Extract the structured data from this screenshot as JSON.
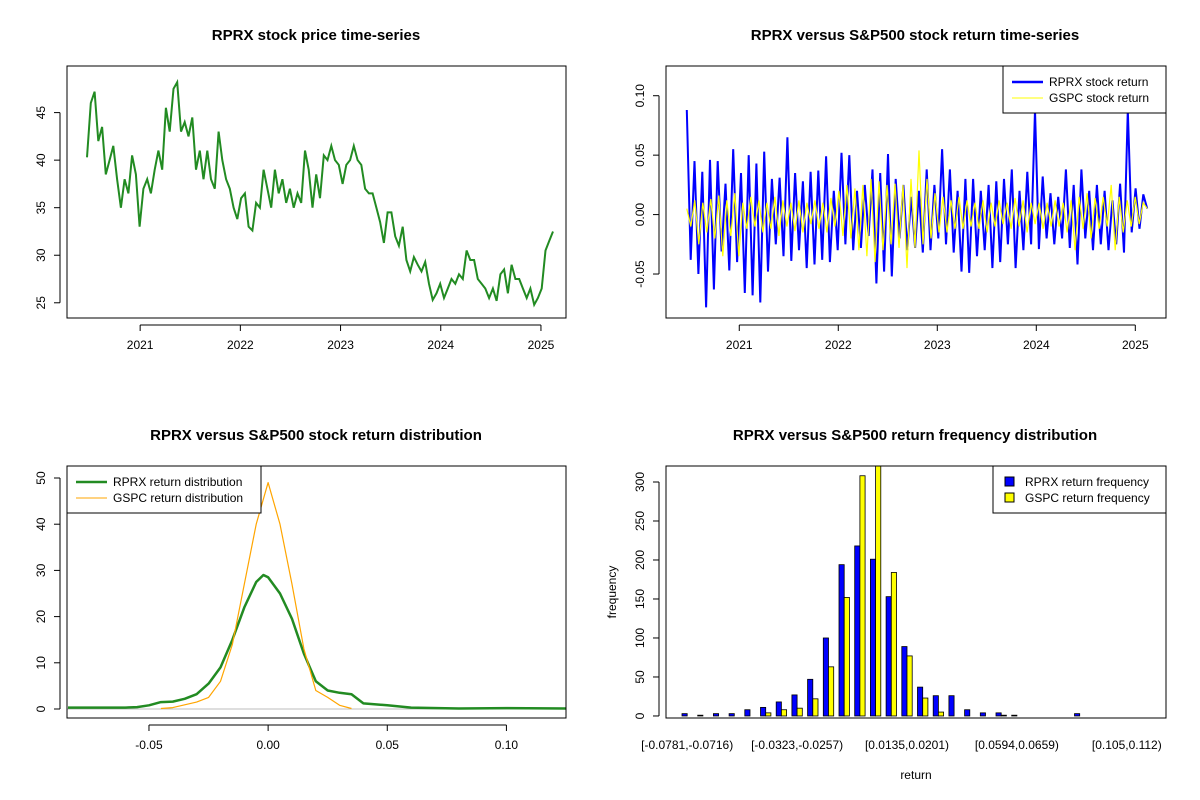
{
  "colors": {
    "rprx_price": "#228b22",
    "rprx_return": "#0000ff",
    "gspc_return": "#ffff00",
    "gspc_density": "#ffa500",
    "zero_line": "#bebebe"
  },
  "chart_data": [
    {
      "id": "price",
      "type": "line",
      "title": "RPRX stock price time-series",
      "xlabel": "",
      "ylabel": "",
      "xlim": [
        2020.27,
        2025.25
      ],
      "ylim": [
        23.4,
        49.9
      ],
      "xticks": [
        {
          "value": 2021,
          "label": "2021"
        },
        {
          "value": 2022,
          "label": "2022"
        },
        {
          "value": 2023,
          "label": "2023"
        },
        {
          "value": 2024,
          "label": "2024"
        },
        {
          "value": 2025,
          "label": "2025"
        }
      ],
      "yticks": [
        {
          "value": 25,
          "label": "25"
        },
        {
          "value": 30,
          "label": "30"
        },
        {
          "value": 35,
          "label": "35"
        },
        {
          "value": 40,
          "label": "40"
        },
        {
          "value": 45,
          "label": "45"
        }
      ],
      "x_range": [
        2020.47,
        2025.12
      ],
      "series": [
        {
          "name": "RPRX",
          "color": "#228b22",
          "values": [
            40.3,
            46,
            47.2,
            42,
            43.5,
            38.5,
            40,
            41.5,
            38,
            35,
            38,
            36.5,
            40.5,
            38.5,
            33,
            37,
            38,
            36.5,
            39,
            41,
            39,
            45.5,
            43,
            47.5,
            48.2,
            43,
            44,
            42.5,
            44.5,
            39,
            41,
            38,
            41,
            38,
            37,
            43,
            40,
            38,
            37,
            35,
            33.8,
            36,
            36.5,
            33,
            32.6,
            35.5,
            35,
            39,
            37,
            35,
            39,
            36.5,
            38,
            35.5,
            37,
            35,
            36.5,
            35.5,
            41,
            39,
            35,
            38.5,
            36,
            40.5,
            40,
            41.5,
            40,
            39.5,
            37.5,
            39.5,
            40,
            41.5,
            40,
            39.5,
            37,
            36.5,
            36.5,
            35,
            33.5,
            31.3,
            34.5,
            34.5,
            32,
            31,
            33,
            29.5,
            28.3,
            29.8,
            29,
            28.3,
            29.3,
            27,
            25.3,
            26,
            27,
            25.5,
            26.5,
            27.5,
            27,
            28,
            27.5,
            30.5,
            29.5,
            29.5,
            27.5,
            27,
            26.5,
            25.5,
            26.5,
            25.2,
            28,
            28.5,
            26,
            29,
            27.5,
            27.5,
            26.5,
            25.5,
            26.5,
            24.8,
            25.5,
            26.5,
            30.5,
            31.5,
            32.5
          ]
        }
      ]
    },
    {
      "id": "returns",
      "type": "line",
      "title": "RPRX versus S&P500 stock return time-series",
      "xlabel": "",
      "ylabel": "",
      "xlim": [
        2020.26,
        2025.31
      ],
      "ylim": [
        -0.087,
        0.125
      ],
      "xticks": [
        {
          "value": 2021,
          "label": "2021"
        },
        {
          "value": 2022,
          "label": "2022"
        },
        {
          "value": 2023,
          "label": "2023"
        },
        {
          "value": 2024,
          "label": "2024"
        },
        {
          "value": 2025,
          "label": "2025"
        }
      ],
      "yticks": [
        {
          "value": -0.05,
          "label": "-0.05"
        },
        {
          "value": 0,
          "label": "0.00"
        },
        {
          "value": 0.05,
          "label": "0.05"
        },
        {
          "value": 0.1,
          "label": "0.10"
        }
      ],
      "x_range": [
        2020.47,
        2025.12
      ],
      "legend": {
        "position": "top-right",
        "entries": [
          "RPRX stock return",
          "GSPC stock return"
        ]
      },
      "series": [
        {
          "name": "RPRX stock return",
          "color": "#0000ff",
          "values": [
            0.088,
            -0.038,
            0.045,
            -0.05,
            0.036,
            -0.078,
            0.046,
            -0.063,
            0.045,
            -0.031,
            0.026,
            -0.047,
            0.055,
            -0.04,
            0.035,
            -0.066,
            0.05,
            -0.068,
            0.043,
            -0.074,
            0.053,
            -0.048,
            0.03,
            -0.025,
            0.031,
            -0.035,
            0.065,
            -0.039,
            0.035,
            -0.03,
            0.028,
            -0.045,
            0.036,
            -0.042,
            0.037,
            -0.038,
            0.049,
            -0.04,
            0.02,
            -0.03,
            0.052,
            -0.025,
            0.05,
            -0.03,
            0.02,
            -0.028,
            0.025,
            -0.018,
            0.038,
            -0.058,
            0.035,
            -0.048,
            0.051,
            -0.052,
            0.03,
            -0.02,
            0.025,
            -0.03,
            0.015,
            -0.028,
            0.02,
            -0.032,
            0.038,
            -0.03,
            0.025,
            -0.02,
            0.055,
            -0.025,
            0.038,
            -0.032,
            0.02,
            -0.048,
            0.03,
            -0.049,
            0.03,
            -0.035,
            0.02,
            -0.03,
            0.025,
            -0.045,
            0.028,
            -0.04,
            0.03,
            -0.025,
            0.038,
            -0.045,
            0.02,
            -0.03,
            0.036,
            -0.025,
            0.088,
            -0.029,
            0.032,
            -0.02,
            0.018,
            -0.025,
            0.015,
            -0.02,
            0.038,
            -0.028,
            0.025,
            -0.042,
            0.038,
            -0.02,
            0.02,
            -0.03,
            0.025,
            -0.025,
            0.02,
            -0.03,
            0.012,
            -0.025,
            0.026,
            -0.032,
            0.088,
            -0.015,
            0.022,
            -0.012,
            0.017,
            0.005
          ]
        },
        {
          "name": "GSPC stock return",
          "color": "#ffff00",
          "values": [
            0.005,
            -0.01,
            0.012,
            -0.025,
            0.01,
            -0.015,
            0.013,
            -0.02,
            0.016,
            -0.035,
            0.012,
            -0.018,
            0.018,
            -0.035,
            0.01,
            -0.012,
            0.015,
            -0.01,
            0.012,
            -0.015,
            0.01,
            -0.012,
            0.015,
            -0.018,
            0.012,
            -0.01,
            0.01,
            -0.014,
            0.012,
            -0.015,
            0.01,
            -0.008,
            0.012,
            -0.012,
            0.01,
            -0.015,
            0.014,
            -0.01,
            0.02,
            -0.018,
            0.025,
            -0.02,
            0.022,
            -0.03,
            0.025,
            -0.035,
            0.03,
            -0.04,
            0.028,
            -0.03,
            0.025,
            -0.025,
            0.026,
            -0.028,
            0.025,
            -0.045,
            0.03,
            -0.028,
            0.054,
            -0.025,
            0.03,
            -0.02,
            0.018,
            -0.015,
            0.015,
            -0.015,
            0.012,
            -0.012,
            0.015,
            -0.012,
            0.012,
            -0.01,
            0.01,
            -0.012,
            0.012,
            -0.015,
            0.01,
            -0.01,
            0.012,
            -0.008,
            0.01,
            -0.012,
            0.014,
            -0.01,
            0.012,
            -0.015,
            0.01,
            -0.008,
            0.01,
            -0.012,
            0.01,
            -0.01,
            0.012,
            -0.01,
            0.01,
            -0.015,
            0.012,
            -0.03,
            0.015,
            -0.012,
            0.018,
            -0.02,
            0.014,
            -0.012,
            0.015,
            -0.01,
            0.025,
            -0.03,
            0.015,
            -0.015,
            0.012,
            -0.01,
            0.015,
            -0.008,
            0.01,
            0.005
          ]
        }
      ]
    },
    {
      "id": "density",
      "type": "line",
      "title": "RPRX versus S&P500 stock return distribution",
      "xlabel": "",
      "ylabel": "",
      "xlim": [
        -0.0844,
        0.125
      ],
      "ylim": [
        -1.95,
        52.6
      ],
      "xticks": [
        {
          "value": -0.05,
          "label": "-0.05"
        },
        {
          "value": 0,
          "label": "0.00"
        },
        {
          "value": 0.05,
          "label": "0.05"
        },
        {
          "value": 0.1,
          "label": "0.10"
        }
      ],
      "yticks": [
        {
          "value": 0,
          "label": "0"
        },
        {
          "value": 10,
          "label": "10"
        },
        {
          "value": 20,
          "label": "20"
        },
        {
          "value": 30,
          "label": "30"
        },
        {
          "value": 40,
          "label": "40"
        },
        {
          "value": 50,
          "label": "50"
        }
      ],
      "legend": {
        "position": "top-left",
        "entries": [
          "RPRX return distribution",
          "GSPC return distribution"
        ]
      },
      "series": [
        {
          "name": "RPRX return distribution",
          "color": "#228b22",
          "x": [
            -0.084,
            -0.06,
            -0.055,
            -0.05,
            -0.045,
            -0.04,
            -0.035,
            -0.03,
            -0.025,
            -0.02,
            -0.015,
            -0.01,
            -0.005,
            -0.002,
            0.0,
            0.005,
            0.01,
            0.015,
            0.02,
            0.025,
            0.03,
            0.035,
            0.04,
            0.05,
            0.06,
            0.08,
            0.1,
            0.125
          ],
          "y": [
            0.3,
            0.3,
            0.4,
            0.8,
            1.5,
            1.6,
            2.2,
            3.2,
            5.5,
            9,
            15,
            22,
            27.5,
            29,
            28.5,
            25,
            19.5,
            12,
            6,
            4,
            3.5,
            3.2,
            1.2,
            0.8,
            0.3,
            0.1,
            0.2,
            0.1
          ]
        },
        {
          "name": "GSPC return distribution",
          "color": "#ffa500",
          "x": [
            -0.045,
            -0.04,
            -0.035,
            -0.03,
            -0.025,
            -0.02,
            -0.015,
            -0.01,
            -0.005,
            0.0,
            0.005,
            0.01,
            0.015,
            0.02,
            0.025,
            0.03,
            0.035
          ],
          "y": [
            0.1,
            0.3,
            0.9,
            1.5,
            2.5,
            6,
            14,
            27,
            40,
            49,
            40,
            27,
            13,
            4,
            2.5,
            0.8,
            0.1
          ]
        }
      ]
    },
    {
      "id": "histogram",
      "type": "bar",
      "title": "RPRX versus S&P500 return frequency distribution",
      "xlabel": "return",
      "ylabel": "frequency",
      "ylim": [
        -2.6,
        320.5
      ],
      "yticks": [
        {
          "value": 0,
          "label": "0"
        },
        {
          "value": 50,
          "label": "50"
        },
        {
          "value": 100,
          "label": "100"
        },
        {
          "value": 150,
          "label": "150"
        },
        {
          "value": 200,
          "label": "200"
        },
        {
          "value": 250,
          "label": "250"
        },
        {
          "value": 300,
          "label": "300"
        }
      ],
      "category_labels": [
        {
          "index": 0,
          "label": "[-0.0781,-0.0716)"
        },
        {
          "index": 7,
          "label": "[-0.0323,-0.0257)"
        },
        {
          "index": 14,
          "label": "[0.0135,0.0201)"
        },
        {
          "index": 21,
          "label": "[0.0594,0.0659)"
        },
        {
          "index": 28,
          "label": "[0.105,0.112)"
        }
      ],
      "legend": {
        "position": "top-right",
        "entries": [
          "RPRX return frequency",
          "GSPC return frequency"
        ]
      },
      "series": [
        {
          "name": "RPRX return frequency",
          "color": "#0000ff",
          "values": [
            3,
            1,
            3,
            3,
            8,
            11,
            18,
            27,
            47,
            100,
            194,
            218,
            201,
            153,
            89,
            37,
            26,
            26,
            8,
            4,
            4,
            1,
            0,
            0,
            0,
            3,
            0,
            0,
            0,
            0
          ]
        },
        {
          "name": "GSPC return frequency",
          "color": "#ffff00",
          "values": [
            0,
            0,
            0,
            0,
            0,
            4,
            8,
            10,
            22,
            63,
            152,
            308,
            330,
            184,
            77,
            23,
            5,
            0,
            0,
            0,
            1,
            0,
            0,
            0,
            0,
            0,
            0,
            0,
            0,
            0
          ]
        }
      ]
    }
  ]
}
